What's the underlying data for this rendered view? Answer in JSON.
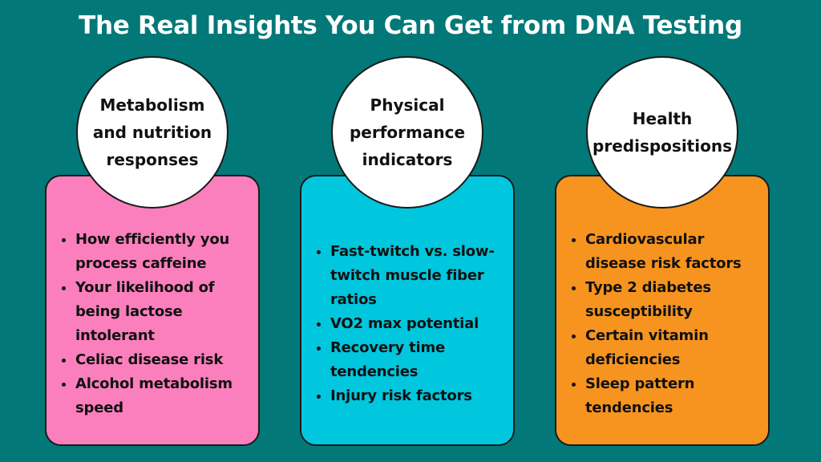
{
  "header": {
    "title": "The Real Insights You Can Get from DNA Testing"
  },
  "cards": [
    {
      "heading": "Metabolism and nutrition responses",
      "color": "#fc7fbd",
      "items": [
        "How efficiently you process caffeine",
        "Your likelihood of being lactose intolerant",
        "Celiac disease risk",
        "Alcohol metabolism speed"
      ]
    },
    {
      "heading": "Physical performance indicators",
      "color": "#00c6de",
      "items": [
        "Fast-twitch vs. slow-twitch muscle fiber ratios",
        "VO2 max potential",
        "Recovery time tendencies",
        "Injury risk factors"
      ]
    },
    {
      "heading": "Health predispositions",
      "color": "#f7941f",
      "items": [
        "Cardiovascular disease risk factors",
        "Type 2 diabetes susceptibility",
        "Certain vitamin deficiencies",
        "Sleep pattern tendencies"
      ]
    }
  ]
}
